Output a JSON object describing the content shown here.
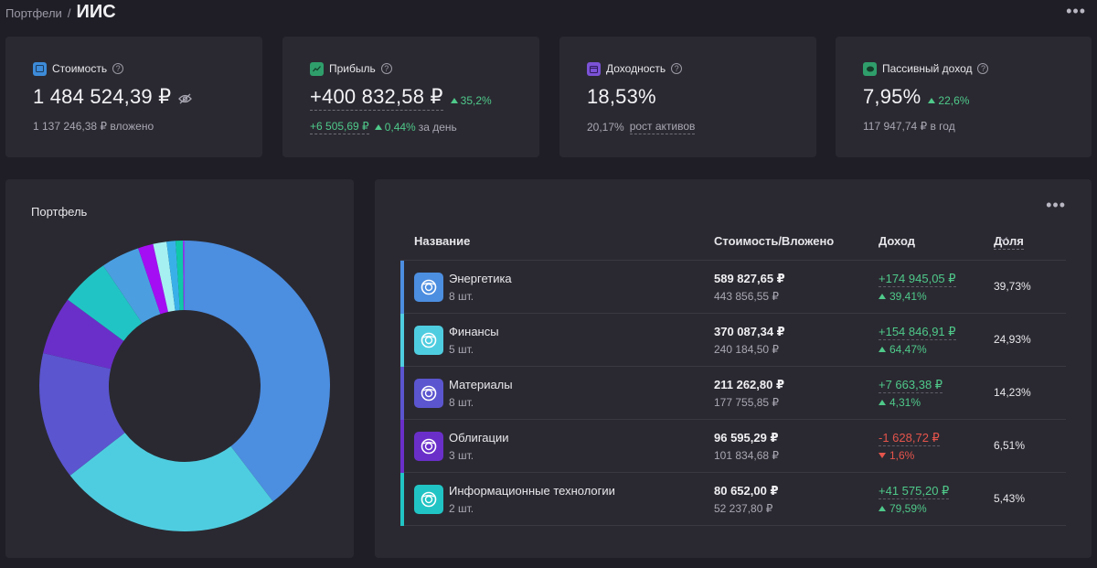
{
  "breadcrumb": {
    "parent": "Портфели",
    "separator": "/",
    "current": "ИИС"
  },
  "menu_icon": "more-horizontal-icon",
  "stats": [
    {
      "label": "Стоимость",
      "icon": "wallet-icon",
      "icon_color": "#3d8bd9",
      "value": "1 484 524,39 ₽",
      "extra_icon": "eye-off-icon",
      "sub": "1 137 246,38 ₽ вложено"
    },
    {
      "label": "Прибыль",
      "icon": "chart-up-icon",
      "icon_color": "#2f9e6b",
      "value": "+400 832,58 ₽",
      "delta": "35,2%",
      "sub_value": "+6 505,69 ₽",
      "sub_delta": "0,44%",
      "sub_suffix": "за день"
    },
    {
      "label": "Доходность",
      "icon": "calendar-icon",
      "icon_color": "#7b52d6",
      "value": "18,53%",
      "sub_value": "20,17%",
      "sub_suffix": "рост активов"
    },
    {
      "label": "Пассивный доход",
      "icon": "piggy-bank-icon",
      "icon_color": "#2f9e6b",
      "value": "7,95%",
      "delta": "22,6%",
      "sub": "117 947,74 ₽ в год"
    }
  ],
  "portfolio": {
    "title": "Портфель",
    "chart_data": {
      "type": "pie",
      "donut": true,
      "slices": [
        {
          "value": 39.73,
          "color": "#4c8ee0"
        },
        {
          "value": 24.93,
          "color": "#4fcde0"
        },
        {
          "value": 14.23,
          "color": "#5b55cf"
        },
        {
          "value": 6.51,
          "color": "#6a2fc9"
        },
        {
          "value": 5.43,
          "color": "#21c4c4"
        },
        {
          "value": 4.3,
          "color": "#4b9fe0"
        },
        {
          "value": 1.7,
          "color": "#a40ef2"
        },
        {
          "value": 1.5,
          "color": "#a6f0f2"
        },
        {
          "value": 1.0,
          "color": "#3ab0e8"
        },
        {
          "value": 0.8,
          "color": "#10c8a8"
        },
        {
          "value": 0.2,
          "color": "#8c3cf0"
        }
      ]
    }
  },
  "table": {
    "headers": {
      "name": "Название",
      "cost": "Стоимость/Вложено",
      "income": "Доход",
      "share": "Доля"
    },
    "sort_icon": "chevron-down-icon",
    "rows": [
      {
        "name": "Энергетика",
        "count": "8 шт.",
        "cost": "589 827,65 ₽",
        "invested": "443 856,55 ₽",
        "income": "+174 945,05 ₽",
        "income_pct": "39,41%",
        "direction": "up",
        "share": "39,73%",
        "color": "#4c8ee0",
        "icon": "sector-energy-icon"
      },
      {
        "name": "Финансы",
        "count": "5 шт.",
        "cost": "370 087,34 ₽",
        "invested": "240 184,50 ₽",
        "income": "+154 846,91 ₽",
        "income_pct": "64,47%",
        "direction": "up",
        "share": "24,93%",
        "color": "#4fcde0",
        "icon": "sector-finance-icon"
      },
      {
        "name": "Материалы",
        "count": "8 шт.",
        "cost": "211 262,80 ₽",
        "invested": "177 755,85 ₽",
        "income": "+7 663,38 ₽",
        "income_pct": "4,31%",
        "direction": "up",
        "share": "14,23%",
        "color": "#5b55cf",
        "icon": "sector-materials-icon"
      },
      {
        "name": "Облигации",
        "count": "3 шт.",
        "cost": "96 595,29 ₽",
        "invested": "101 834,68 ₽",
        "income": "-1 628,72 ₽",
        "income_pct": "1,6%",
        "direction": "down",
        "share": "6,51%",
        "color": "#6a2fc9",
        "icon": "sector-bonds-icon"
      },
      {
        "name": "Информационные технологии",
        "count": "2 шт.",
        "cost": "80 652,00 ₽",
        "invested": "52 237,80 ₽",
        "income": "+41 575,20 ₽",
        "income_pct": "79,59%",
        "direction": "up",
        "share": "5,43%",
        "color": "#21c4c4",
        "icon": "sector-it-icon"
      }
    ]
  }
}
